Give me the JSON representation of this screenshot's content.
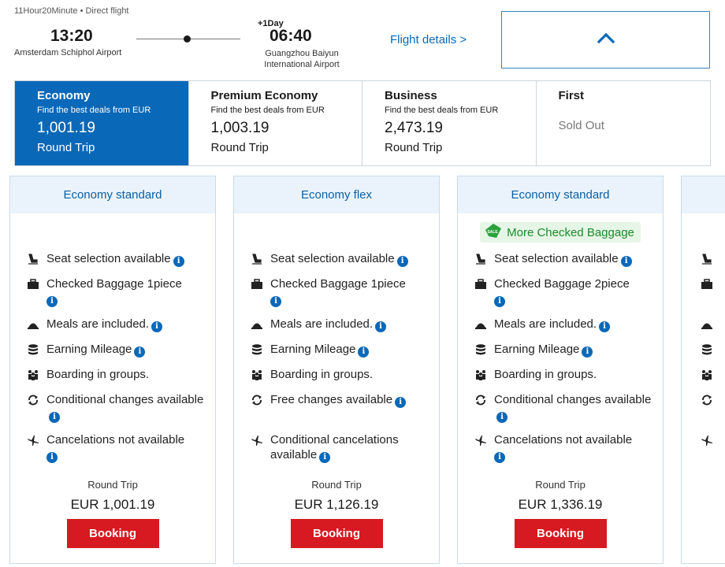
{
  "header": {
    "duration": "11Hour20Minute • Direct flight",
    "departure_time": "13:20",
    "departure_airport": "Amsterdam Schiphol Airport",
    "plus_day": "+1Day",
    "arrival_time": "06:40",
    "arrival_airport_line1": "Guangzhou Baiyun",
    "arrival_airport_line2": "International Airport",
    "flight_details_link": "Flight details >",
    "collapse_icon": "chevron-up-icon"
  },
  "cabins": [
    {
      "name": "Economy",
      "deal": "Find the best deals from EUR",
      "price": "1,001.19",
      "trip": "Round Trip",
      "selected": true
    },
    {
      "name": "Premium Economy",
      "deal": "Find the best deals from EUR",
      "price": "1,003.19",
      "trip": "Round Trip",
      "selected": false
    },
    {
      "name": "Business",
      "deal": "Find the best deals from EUR",
      "price": "2,473.19",
      "trip": "Round Trip",
      "selected": false
    },
    {
      "name": "First",
      "status": "Sold Out",
      "selected": false
    }
  ],
  "info_glyph": "i",
  "fares": [
    {
      "title": "Economy standard",
      "features": {
        "seat": "Seat selection available",
        "baggage": "Checked Baggage 1piece",
        "meals": "Meals are included.",
        "mileage": "Earning Mileage",
        "boarding": "Boarding in groups.",
        "changes": "Conditional changes available",
        "cancel": "Cancelations not available"
      },
      "trip": "Round Trip",
      "price": "EUR 1,001.19",
      "button": "Booking"
    },
    {
      "title": "Economy flex",
      "features": {
        "seat": "Seat selection available",
        "baggage": "Checked Baggage 1piece",
        "meals": "Meals are included.",
        "mileage": "Earning Mileage",
        "boarding": "Boarding in groups.",
        "changes": "Free changes available",
        "cancel": "Conditional cancelations available"
      },
      "trip": "Round Trip",
      "price": "EUR 1,126.19",
      "button": "Booking"
    },
    {
      "title": "Economy standard",
      "badge": "More Checked Baggage",
      "badge_icon_text": "SALE",
      "features": {
        "seat": "Seat selection available",
        "baggage": "Checked Baggage 2piece",
        "meals": "Meals are included.",
        "mileage": "Earning Mileage",
        "boarding": "Boarding in groups.",
        "changes": "Conditional changes available",
        "cancel": "Cancelations not available"
      },
      "trip": "Round Trip",
      "price": "EUR 1,336.19",
      "button": "Booking"
    }
  ],
  "colors": {
    "primary_blue": "#0a68b8",
    "booking_red": "#d71921",
    "header_bg": "#eaf3fb",
    "badge_green": "#1d8a2a"
  }
}
